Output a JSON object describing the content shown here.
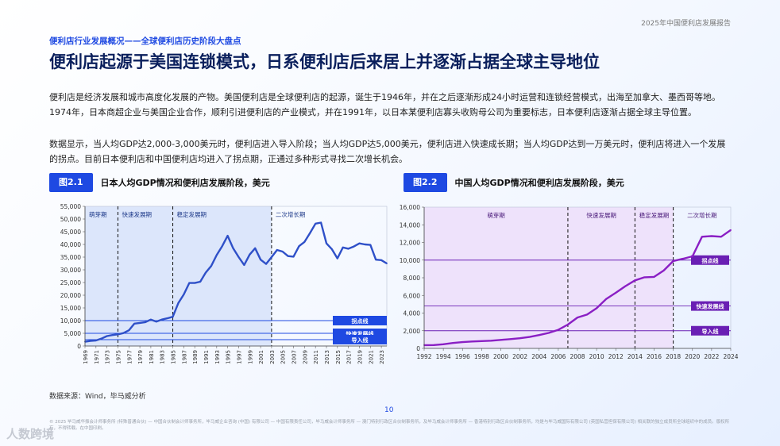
{
  "header": {
    "report_title": "2025年中国便利店发展报告"
  },
  "kicker": "便利店行业发展概况——全球便利店历史阶段大盘点",
  "headline": "便利店起源于美国连锁模式，日系便利店后来居上并逐渐占据全球主导地位",
  "paragraphs": [
    "便利店是经济发展和城市高度化发展的产物。美国便利店是全球便利店的起源，诞生于1946年，并在之后逐渐形成24小时运营和连锁经营模式，出海至加拿大、墨西哥等地。1974年，日本商超企业与美国企业合作，顺利引进便利店的产业模式，并在1991年，以日本某便利店寡头收购母公司为重要标志，日本便利店逐渐占据全球主导位置。",
    "数据显示，当人均GDP达2,000-3,000美元时，便利店进入导入阶段；当人均GDP达5,000美元，便利店进入快速成长期；当人均GDP达到一万美元时，便利店将进入一个发展的拐点。目前日本便利店和中国便利店均进入了拐点期，正通过多种形式寻找二次增长机会。"
  ],
  "figures": [
    {
      "tag": "图2.1",
      "title": "日本人均GDP情况和便利店发展阶段，美元"
    },
    {
      "tag": "图2.2",
      "title": "中国人均GDP情况和便利店发展阶段，美元"
    }
  ],
  "source": "数据来源：Wind，毕马威分析",
  "page_number": "10",
  "footer": "© 2025 毕马威华振会计师事务所 (特殊普通合伙) — 中国合伙制会计师事务所，毕马威企业咨询 (中国) 有限公司 — 中国有限责任公司，毕马威会计师事务所 — 澳门特别行政区合伙制事务所，及毕马威会计师事务所 — 香港特别行政区合伙制事务所，均是与毕马威国际有限公司 (英国私营担保有限公司) 相关联的独立成员所全球组织中的成员。版权所有，不得转载。在中国印刷。",
  "watermark": "人数跨境",
  "colors": {
    "japan_line": "#2f50c8",
    "china_line": "#8a1fc4",
    "japan_band": "#dce6fb",
    "china_band": "#eee2fb",
    "accent": "#1e49e2"
  },
  "chart_data": [
    {
      "type": "line",
      "title": "日本人均GDP情况和便利店发展阶段，美元",
      "ylim": [
        0,
        55000
      ],
      "yticks": [
        "0",
        "5,000",
        "10,000",
        "15,000",
        "20,000",
        "25,000",
        "30,000",
        "35,000",
        "40,000",
        "45,000",
        "50,000",
        "55,000"
      ],
      "grid": false,
      "x": [
        1969,
        1970,
        1971,
        1972,
        1973,
        1974,
        1975,
        1976,
        1977,
        1978,
        1979,
        1980,
        1981,
        1982,
        1983,
        1984,
        1985,
        1986,
        1987,
        1988,
        1989,
        1990,
        1991,
        1992,
        1993,
        1994,
        1995,
        1996,
        1997,
        1998,
        1999,
        2000,
        2001,
        2002,
        2003,
        2004,
        2005,
        2006,
        2007,
        2008,
        2009,
        2010,
        2011,
        2012,
        2013,
        2014,
        2015,
        2016,
        2017,
        2018,
        2019,
        2020,
        2021,
        2022,
        2023,
        2024
      ],
      "xtick_labels": [
        "1969",
        "1971",
        "1973",
        "1975",
        "1977",
        "1979",
        "1981",
        "1983",
        "1985",
        "1987",
        "1989",
        "1991",
        "1993",
        "1995",
        "1997",
        "1999",
        "2001",
        "2003",
        "2005",
        "2007",
        "2009",
        "2011",
        "2013",
        "2015",
        "2017",
        "2019",
        "2021",
        "2023"
      ],
      "series": [
        {
          "values": [
            1700,
            2000,
            2200,
            2900,
            3900,
            4300,
            4600,
            5100,
            6200,
            8800,
            9100,
            9400,
            10400,
            9600,
            10400,
            10900,
            11500,
            16900,
            20300,
            24800,
            24800,
            25300,
            28900,
            31500,
            35800,
            39300,
            43400,
            38500,
            35000,
            31900,
            36000,
            38500,
            34000,
            32300,
            35000,
            37800,
            37200,
            35400,
            35200,
            39300,
            41000,
            44500,
            48200,
            48600,
            40400,
            38100,
            34500,
            38800,
            38300,
            39200,
            40400,
            40000,
            39800,
            34000,
            33800,
            32500
          ]
        }
      ],
      "stages": [
        {
          "label": "萌芽期",
          "from": 1969,
          "to": 1975
        },
        {
          "label": "快速发展期",
          "from": 1975,
          "to": 1985
        },
        {
          "label": "稳定发展期",
          "from": 1985,
          "to": 2003
        },
        {
          "label": "二次增长期",
          "from": 2003,
          "to": 2024
        }
      ],
      "thresholds": [
        {
          "label": "拐点线",
          "value": 10000
        },
        {
          "label": "快速发展线",
          "value": 5000
        },
        {
          "label": "导入线",
          "value": 2500
        }
      ]
    },
    {
      "type": "line",
      "title": "中国人均GDP情况和便利店发展阶段，美元",
      "ylim": [
        0,
        16000
      ],
      "yticks": [
        "0",
        "2,000",
        "4,000",
        "6,000",
        "8,000",
        "10,000",
        "12,000",
        "14,000",
        "16,000"
      ],
      "grid": false,
      "x": [
        1992,
        1993,
        1994,
        1995,
        1996,
        1997,
        1998,
        1999,
        2000,
        2001,
        2002,
        2003,
        2004,
        2005,
        2006,
        2007,
        2008,
        2009,
        2010,
        2011,
        2012,
        2013,
        2014,
        2015,
        2016,
        2017,
        2018,
        2019,
        2020,
        2021,
        2022,
        2023,
        2024
      ],
      "xtick_labels": [
        "1992",
        "1994",
        "1996",
        "1998",
        "2000",
        "2002",
        "2004",
        "2006",
        "2008",
        "2010",
        "2012",
        "2014",
        "2016",
        "2018",
        "2020",
        "2022",
        "2024"
      ],
      "series": [
        {
          "values": [
            370,
            380,
            470,
            610,
            710,
            780,
            830,
            870,
            960,
            1050,
            1150,
            1290,
            1510,
            1750,
            2100,
            2700,
            3500,
            3830,
            4550,
            5600,
            6300,
            7050,
            7700,
            8050,
            8100,
            8820,
            9900,
            10150,
            10430,
            12650,
            12720,
            12650,
            13400
          ]
        }
      ],
      "stages": [
        {
          "label": "萌芽期",
          "from": 1992,
          "to": 2007
        },
        {
          "label": "快速发展期",
          "from": 2007,
          "to": 2014
        },
        {
          "label": "稳定发展期",
          "from": 2014,
          "to": 2018
        },
        {
          "label": "二次增长期",
          "from": 2018,
          "to": 2024
        }
      ],
      "thresholds": [
        {
          "label": "拐点线",
          "value": 10000
        },
        {
          "label": "快速发展线",
          "value": 4800
        },
        {
          "label": "导入线",
          "value": 2000
        }
      ]
    }
  ]
}
